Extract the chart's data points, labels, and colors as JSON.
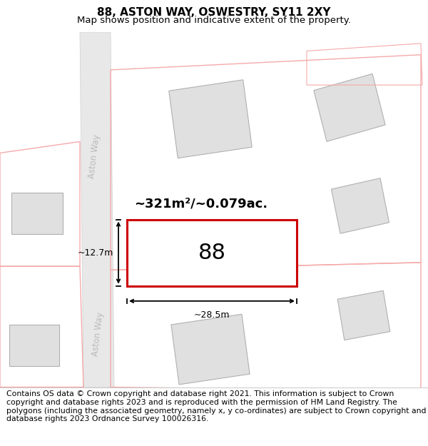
{
  "title": "88, ASTON WAY, OSWESTRY, SY11 2XY",
  "subtitle": "Map shows position and indicative extent of the property.",
  "footer": "Contains OS data © Crown copyright and database right 2021. This information is subject to Crown copyright and database rights 2023 and is reproduced with the permission of HM Land Registry. The polygons (including the associated geometry, namely x, y co-ordinates) are subject to Crown copyright and database rights 2023 Ordnance Survey 100026316.",
  "map_bg": "#ffffff",
  "road_color": "#e8e8e8",
  "road_border_color": "#d0d0d0",
  "plot_fill": "#e0e0e0",
  "plot_border": "#b0b0b0",
  "road_line_color": "#f5aaaa",
  "target_border": "#cc0000",
  "area_text": "~321m²/~0.079ac.",
  "number_text": "88",
  "width_text": "~28.5m",
  "height_text": "~12.7m",
  "road_label": "Aston Way",
  "title_fontsize": 11,
  "subtitle_fontsize": 9.5,
  "footer_fontsize": 7.8
}
